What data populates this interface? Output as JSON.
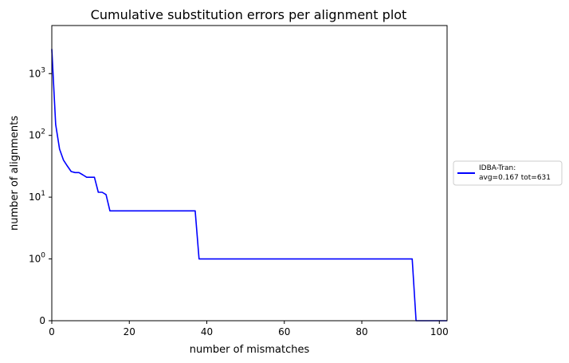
{
  "chart_data": {
    "type": "line",
    "title": "Cumulative substitution errors per alignment plot",
    "xlabel": "number of mismatches",
    "ylabel": "number of alignments",
    "xlim": [
      0,
      102
    ],
    "x_ticks": [
      0,
      20,
      40,
      60,
      80,
      100
    ],
    "x_tick_labels": [
      "0",
      "20",
      "40",
      "60",
      "80",
      "100"
    ],
    "y_scale": "symlog",
    "y_ticks": [
      {
        "value": 0,
        "base": "0",
        "exp": ""
      },
      {
        "value": 1,
        "base": "10",
        "exp": "0"
      },
      {
        "value": 10,
        "base": "10",
        "exp": "1"
      },
      {
        "value": 100,
        "base": "10",
        "exp": "2"
      },
      {
        "value": 1000,
        "base": "10",
        "exp": "3"
      }
    ],
    "y_max": 6000,
    "grid": false,
    "legend_position": "right-outside",
    "series": [
      {
        "name": "IDBA-Tran:",
        "name_line2": "avg=0.167 tot=631",
        "color": "#0000ff",
        "x": [
          0,
          1,
          2,
          3,
          4,
          5,
          6,
          7,
          8,
          9,
          10,
          11,
          12,
          13,
          14,
          15,
          16,
          20,
          30,
          37,
          38,
          40,
          60,
          80,
          93,
          94,
          100,
          102
        ],
        "y": [
          2500,
          150,
          60,
          40,
          32,
          26,
          25,
          25,
          23,
          21,
          21,
          21,
          12,
          12,
          11,
          6,
          6,
          6,
          6,
          6,
          1,
          1,
          1,
          1,
          1,
          0,
          0,
          0
        ]
      }
    ]
  }
}
